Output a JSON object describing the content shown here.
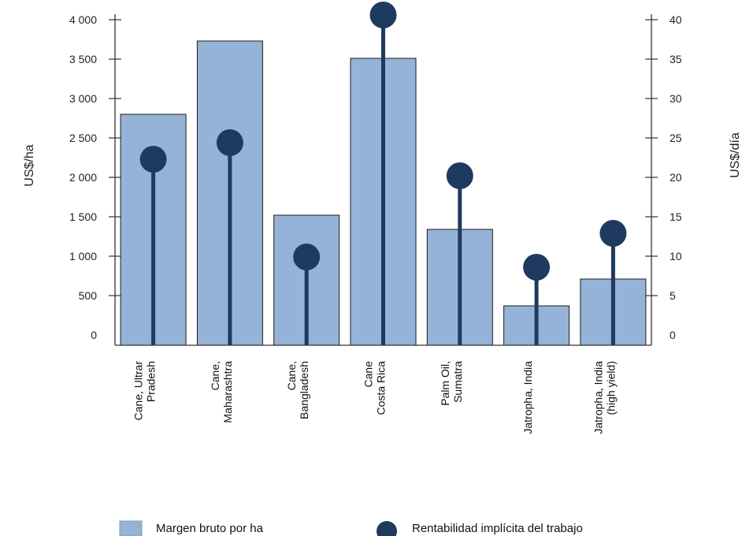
{
  "chart_data": {
    "type": "bar",
    "categories": [
      [
        "Cane, Ultrar",
        "Pradesh"
      ],
      [
        "Cane,",
        "Maharashtra"
      ],
      [
        "Cane,",
        "Bangladesh"
      ],
      [
        "Cane",
        "Costa Rica"
      ],
      [
        "Palm Oil,",
        "Sumatra"
      ],
      [
        "Jatropha, India"
      ],
      [
        "Jatropha, India",
        "(high yield)"
      ]
    ],
    "series": [
      {
        "name": "Margen bruto por ha",
        "type": "bar",
        "axis": "left",
        "color": "#95b3d7",
        "values": [
          2800,
          3730,
          1520,
          3510,
          1340,
          370,
          710
        ]
      },
      {
        "name": "Rentabilidad implícita del trabajo",
        "type": "lollipop",
        "axis": "right",
        "color": "#1f3a5f",
        "values": [
          22.3,
          24.4,
          9.9,
          40.6,
          20.2,
          8.6,
          12.9
        ]
      }
    ],
    "ylabel_left": "US$/ha",
    "ylabel_right": "US$/día",
    "ylim_left": [
      0,
      4000
    ],
    "ylim_right": [
      0,
      40
    ],
    "yticks_left": [
      "0",
      "500",
      "1 000",
      "1 500",
      "2 000",
      "2 500",
      "3 000",
      "3 500",
      "4 000"
    ],
    "yticks_right": [
      "0",
      "5",
      "10",
      "15",
      "20",
      "25",
      "30",
      "35",
      "40"
    ],
    "legend_position": "bottom",
    "grid": false
  }
}
